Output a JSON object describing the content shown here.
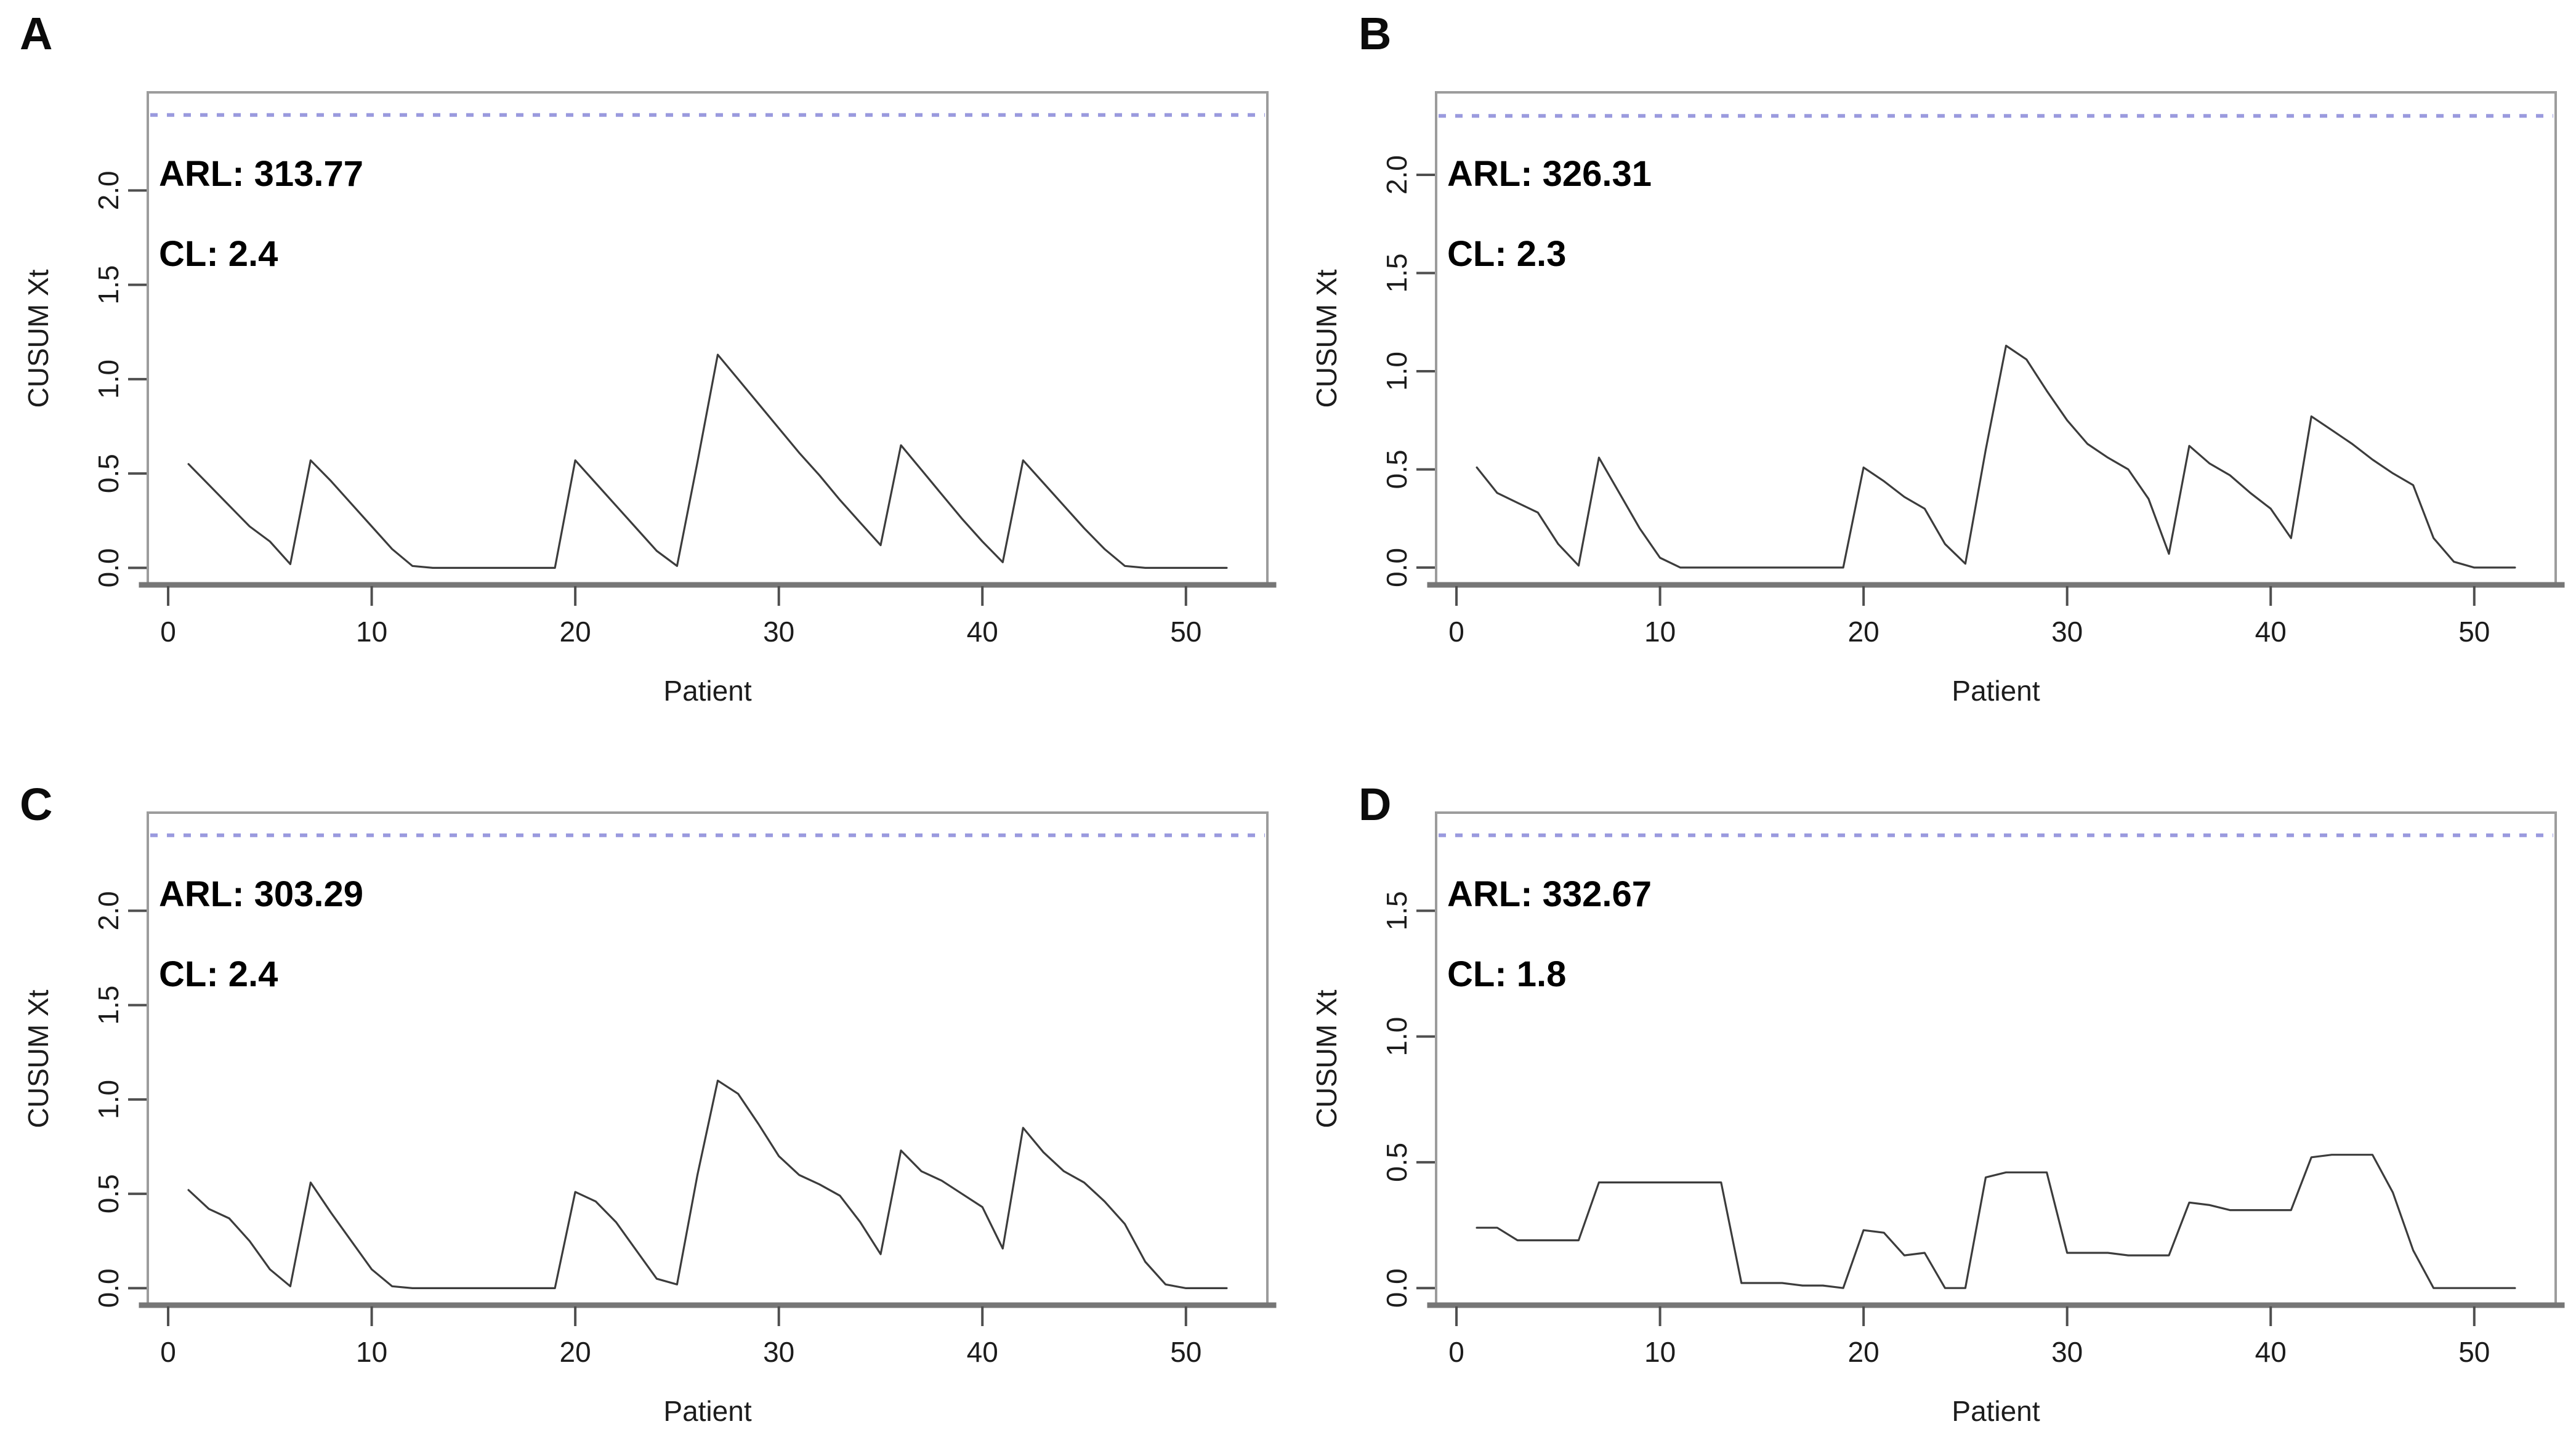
{
  "figure": {
    "xlabel": "Patient",
    "ylabel": "CUSUM Xt",
    "background_color": "#ffffff",
    "control_limit_color": "#9a9ade",
    "series_color": "#3c3c3c"
  },
  "chart_data": [
    {
      "type": "line",
      "panel": "A",
      "annotations": {
        "arl": "ARL: 313.77",
        "cl": "CL: 2.4"
      },
      "arl": 313.77,
      "control_limit": 2.4,
      "xlabel": "Patient",
      "ylabel": "CUSUM Xt",
      "xticks": [
        0,
        10,
        20,
        30,
        40,
        50
      ],
      "yticks": [
        0.0,
        0.5,
        1.0,
        1.5,
        2.0
      ],
      "xlim": [
        -1,
        54
      ],
      "ylim": [
        -0.09,
        2.52
      ],
      "grid": false,
      "x": [
        1,
        2,
        3,
        4,
        5,
        6,
        7,
        8,
        9,
        10,
        11,
        12,
        13,
        14,
        15,
        16,
        17,
        18,
        19,
        20,
        21,
        22,
        23,
        24,
        25,
        26,
        27,
        28,
        29,
        30,
        31,
        32,
        33,
        34,
        35,
        36,
        37,
        38,
        39,
        40,
        41,
        42,
        43,
        44,
        45,
        46,
        47,
        48,
        49,
        50,
        51,
        52
      ],
      "values": [
        0.55,
        0.44,
        0.33,
        0.22,
        0.14,
        0.02,
        0.57,
        0.46,
        0.34,
        0.22,
        0.1,
        0.01,
        0,
        0,
        0,
        0,
        0,
        0,
        0,
        0.57,
        0.45,
        0.33,
        0.21,
        0.09,
        0.01,
        0.56,
        1.13,
        1.0,
        0.87,
        0.74,
        0.61,
        0.49,
        0.36,
        0.24,
        0.12,
        0.65,
        0.52,
        0.39,
        0.26,
        0.14,
        0.03,
        0.57,
        0.45,
        0.33,
        0.21,
        0.1,
        0.01,
        0,
        0,
        0,
        0,
        0
      ]
    },
    {
      "type": "line",
      "panel": "B",
      "annotations": {
        "arl": "ARL: 326.31",
        "cl": "CL: 2.3"
      },
      "arl": 326.31,
      "control_limit": 2.3,
      "xlabel": "Patient",
      "ylabel": "CUSUM Xt",
      "xticks": [
        0,
        10,
        20,
        30,
        40,
        50
      ],
      "yticks": [
        0.0,
        0.5,
        1.0,
        1.5,
        2.0
      ],
      "xlim": [
        -1,
        54
      ],
      "ylim": [
        -0.088,
        2.42
      ],
      "grid": false,
      "x": [
        1,
        2,
        3,
        4,
        5,
        6,
        7,
        8,
        9,
        10,
        11,
        12,
        13,
        14,
        15,
        16,
        17,
        18,
        19,
        20,
        21,
        22,
        23,
        24,
        25,
        26,
        27,
        28,
        29,
        30,
        31,
        32,
        33,
        34,
        35,
        36,
        37,
        38,
        39,
        40,
        41,
        42,
        43,
        44,
        45,
        46,
        47,
        48,
        49,
        50,
        51,
        52
      ],
      "values": [
        0.51,
        0.38,
        0.33,
        0.28,
        0.12,
        0.01,
        0.56,
        0.38,
        0.2,
        0.05,
        0,
        0,
        0,
        0,
        0,
        0,
        0,
        0,
        0,
        0.51,
        0.44,
        0.36,
        0.3,
        0.12,
        0.02,
        0.6,
        1.13,
        1.06,
        0.9,
        0.75,
        0.63,
        0.56,
        0.5,
        0.35,
        0.07,
        0.62,
        0.53,
        0.47,
        0.38,
        0.3,
        0.15,
        0.77,
        0.7,
        0.63,
        0.55,
        0.48,
        0.42,
        0.15,
        0.03,
        0,
        0,
        0
      ]
    },
    {
      "type": "line",
      "panel": "C",
      "annotations": {
        "arl": "ARL: 303.29",
        "cl": "CL: 2.4"
      },
      "arl": 303.29,
      "control_limit": 2.4,
      "xlabel": "Patient",
      "ylabel": "CUSUM Xt",
      "xticks": [
        0,
        10,
        20,
        30,
        40,
        50
      ],
      "yticks": [
        0.0,
        0.5,
        1.0,
        1.5,
        2.0
      ],
      "xlim": [
        -1,
        54
      ],
      "ylim": [
        -0.09,
        2.52
      ],
      "grid": false,
      "x": [
        1,
        2,
        3,
        4,
        5,
        6,
        7,
        8,
        9,
        10,
        11,
        12,
        13,
        14,
        15,
        16,
        17,
        18,
        19,
        20,
        21,
        22,
        23,
        24,
        25,
        26,
        27,
        28,
        29,
        30,
        31,
        32,
        33,
        34,
        35,
        36,
        37,
        38,
        39,
        40,
        41,
        42,
        43,
        44,
        45,
        46,
        47,
        48,
        49,
        50,
        51,
        52
      ],
      "values": [
        0.52,
        0.42,
        0.37,
        0.25,
        0.1,
        0.01,
        0.56,
        0.4,
        0.25,
        0.1,
        0.01,
        0,
        0,
        0,
        0,
        0,
        0,
        0,
        0,
        0.51,
        0.46,
        0.35,
        0.2,
        0.05,
        0.02,
        0.6,
        1.1,
        1.03,
        0.87,
        0.7,
        0.6,
        0.55,
        0.49,
        0.35,
        0.18,
        0.73,
        0.62,
        0.57,
        0.5,
        0.43,
        0.21,
        0.85,
        0.72,
        0.62,
        0.56,
        0.46,
        0.34,
        0.14,
        0.02,
        0,
        0,
        0
      ]
    },
    {
      "type": "line",
      "panel": "D",
      "annotations": {
        "arl": "ARL: 332.67",
        "cl": "CL: 1.8"
      },
      "arl": 332.67,
      "control_limit": 1.8,
      "xlabel": "Patient",
      "ylabel": "CUSUM Xt",
      "xticks": [
        0,
        10,
        20,
        30,
        40,
        50
      ],
      "yticks": [
        0.0,
        0.5,
        1.0,
        1.5
      ],
      "xlim": [
        -1,
        54
      ],
      "ylim": [
        -0.068,
        1.89
      ],
      "grid": false,
      "x": [
        1,
        2,
        3,
        4,
        5,
        6,
        7,
        8,
        9,
        10,
        11,
        12,
        13,
        14,
        15,
        16,
        17,
        18,
        19,
        20,
        21,
        22,
        23,
        24,
        25,
        26,
        27,
        28,
        29,
        30,
        31,
        32,
        33,
        34,
        35,
        36,
        37,
        38,
        39,
        40,
        41,
        42,
        43,
        44,
        45,
        46,
        47,
        48,
        49,
        50,
        51,
        52
      ],
      "values": [
        0.24,
        0.24,
        0.19,
        0.19,
        0.19,
        0.19,
        0.42,
        0.42,
        0.42,
        0.42,
        0.42,
        0.42,
        0.42,
        0.02,
        0.02,
        0.02,
        0.01,
        0.01,
        0,
        0.23,
        0.22,
        0.13,
        0.14,
        0,
        0,
        0.44,
        0.46,
        0.46,
        0.46,
        0.14,
        0.14,
        0.14,
        0.13,
        0.13,
        0.13,
        0.34,
        0.33,
        0.31,
        0.31,
        0.31,
        0.31,
        0.52,
        0.53,
        0.53,
        0.53,
        0.38,
        0.15,
        0,
        0,
        0,
        0,
        0
      ]
    }
  ]
}
